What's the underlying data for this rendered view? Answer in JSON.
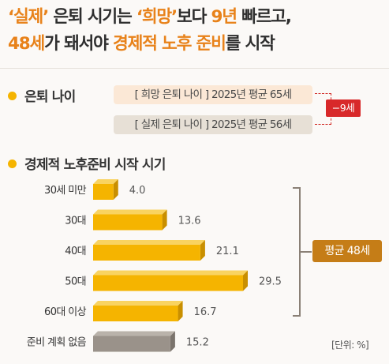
{
  "headline": {
    "line1": [
      {
        "text": "‘실제’",
        "highlight": true
      },
      {
        "text": " 은퇴 시기는 ",
        "highlight": false
      },
      {
        "text": "‘희망’",
        "highlight": true
      },
      {
        "text": "보다 ",
        "highlight": false
      },
      {
        "text": "9년",
        "highlight": true
      },
      {
        "text": " 빠르고,",
        "highlight": false
      }
    ],
    "line2": [
      {
        "text": "48세",
        "highlight": true
      },
      {
        "text": "가 돼서야 ",
        "highlight": false
      },
      {
        "text": "경제적 노후 준비",
        "highlight": true
      },
      {
        "text": "를 시작",
        "highlight": false
      }
    ]
  },
  "sections": {
    "retire_age_title": "은퇴 나이",
    "prep_title": "경제적 노후준비 시작 시기"
  },
  "retire_age": {
    "hope_label": "[ 희망 은퇴 나이 ] 2025년 평균 65세",
    "real_label": "[ 실제 은퇴 나이 ] 2025년 평균 56세",
    "gap_badge": "−9세"
  },
  "colors": {
    "accent": "#e8821a",
    "bar": "#f5b400",
    "bar_gray": "#9a928a",
    "badge_red": "#d8292a",
    "badge_brown": "#c57d17"
  },
  "chart_data": {
    "type": "bar",
    "orientation": "horizontal",
    "categories": [
      "30세 미만",
      "30대",
      "40대",
      "50대",
      "60대 이상",
      "준비 계획 없음"
    ],
    "values": [
      4.0,
      13.6,
      21.1,
      29.5,
      16.7,
      15.2
    ],
    "value_labels": [
      "4.0",
      "13.6",
      "21.1",
      "29.5",
      "16.7",
      "15.2"
    ],
    "unit": "[단위: %]",
    "annotation": "평균 48세"
  }
}
